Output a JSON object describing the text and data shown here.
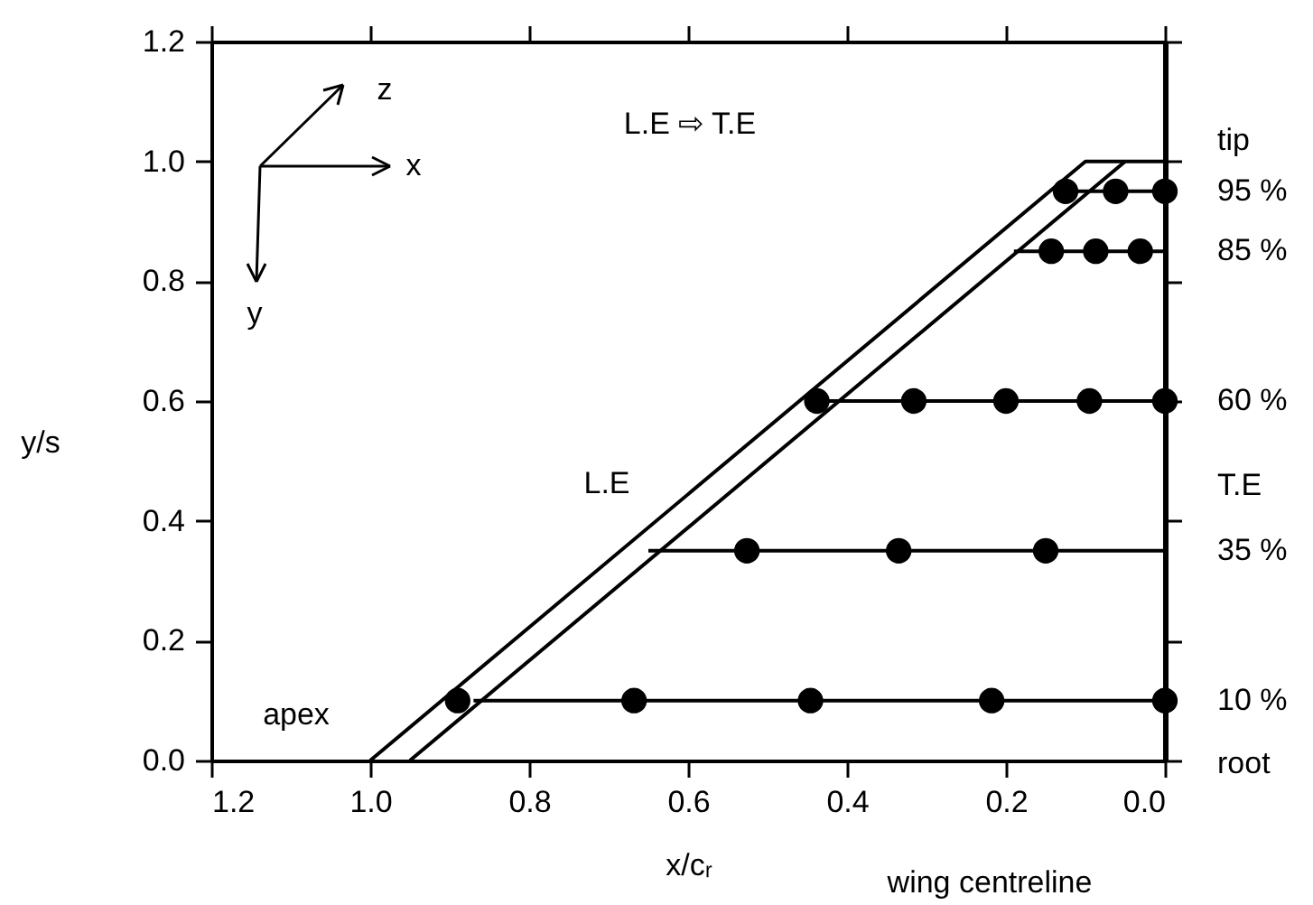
{
  "chart_data": {
    "type": "scatter",
    "xlabel": "x/cᵣ",
    "ylabel": "y/s",
    "xlim": [
      1.2,
      0.0
    ],
    "xticks": [
      {
        "value": 1.2,
        "label": "1.2"
      },
      {
        "value": 1.0,
        "label": "1.0"
      },
      {
        "value": 0.8,
        "label": "0.8"
      },
      {
        "value": 0.6,
        "label": "0.6"
      },
      {
        "value": 0.4,
        "label": "0.4"
      },
      {
        "value": 0.2,
        "label": "0.2"
      },
      {
        "value": 0.0,
        "label": "0.0"
      }
    ],
    "ylim": [
      0.0,
      1.2
    ],
    "yticks": [
      {
        "value": 0.0,
        "label": "0.0"
      },
      {
        "value": 0.2,
        "label": "0.2"
      },
      {
        "value": 0.4,
        "label": "0.4"
      },
      {
        "value": 0.6,
        "label": "0.6"
      },
      {
        "value": 0.8,
        "label": "0.8"
      },
      {
        "value": 1.0,
        "label": "1.0"
      },
      {
        "value": 1.2,
        "label": "1.2"
      }
    ],
    "grid": false,
    "line_style": "solid",
    "series": [
      {
        "type": "line",
        "color": "#000000",
        "x": [
          1.0,
          0.1,
          0.0
        ],
        "values": [
          0.0,
          1.0,
          1.0
        ]
      },
      {
        "type": "line",
        "color": "#000000",
        "x": [
          0.95,
          0.05
        ],
        "values": [
          0.0,
          1.0
        ]
      },
      {
        "type": "line",
        "color": "#000000",
        "x": [
          0.12,
          0.0
        ],
        "values": [
          0.95,
          0.95
        ]
      },
      {
        "type": "line",
        "color": "#000000",
        "x": [
          0.19,
          0.0
        ],
        "values": [
          0.85,
          0.85
        ]
      },
      {
        "type": "line",
        "color": "#000000",
        "x": [
          0.44,
          0.0
        ],
        "values": [
          0.6,
          0.6
        ]
      },
      {
        "type": "line",
        "color": "#000000",
        "x": [
          0.65,
          0.0
        ],
        "values": [
          0.35,
          0.35
        ]
      },
      {
        "type": "line",
        "color": "#000000",
        "x": [
          0.87,
          0.0
        ],
        "values": [
          0.1,
          0.1
        ]
      },
      {
        "marker": "circle",
        "color": "#000000",
        "x": [
          0.125,
          0.062,
          0.0,
          0.143,
          0.087,
          0.031,
          0.438,
          0.316,
          0.2,
          0.095,
          0.0,
          0.526,
          0.335,
          0.15,
          0.89,
          0.668,
          0.446,
          0.218,
          0.0
        ],
        "values": [
          0.95,
          0.95,
          0.95,
          0.85,
          0.85,
          0.85,
          0.6,
          0.6,
          0.6,
          0.6,
          0.6,
          0.35,
          0.35,
          0.35,
          0.1,
          0.1,
          0.1,
          0.1,
          0.1
        ]
      }
    ],
    "annotations": [
      "tip",
      "95 %",
      "85 %",
      "60 %",
      "T.E",
      "35 %",
      "10 %",
      "root",
      "apex",
      "L.E",
      "L.E  ⇨  T.E",
      "z",
      "x",
      "y",
      "wing centreline"
    ]
  }
}
